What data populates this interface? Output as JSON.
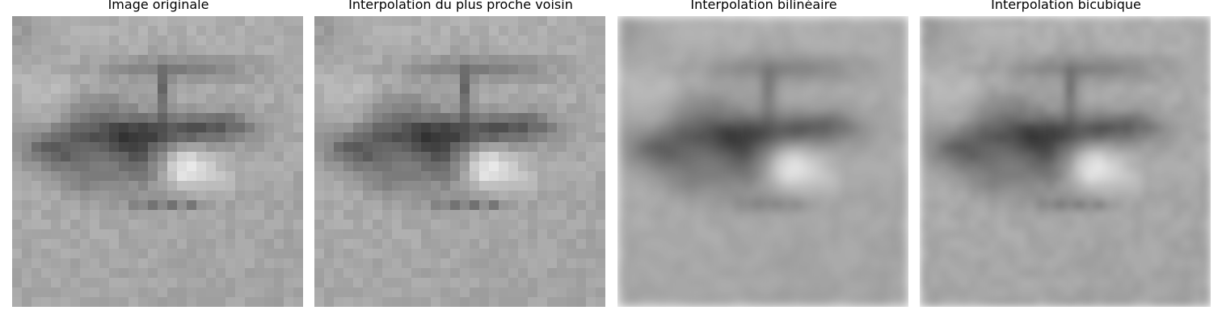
{
  "panels": [
    {
      "title": "Image originale",
      "mode": "nearest"
    },
    {
      "title": "Interpolation du plus proche voisin",
      "mode": "nearest"
    },
    {
      "title": "Interpolation bilinéaire",
      "mode": "bilinear"
    },
    {
      "title": "Interpolation bicubique",
      "mode": "bicubic"
    }
  ]
}
